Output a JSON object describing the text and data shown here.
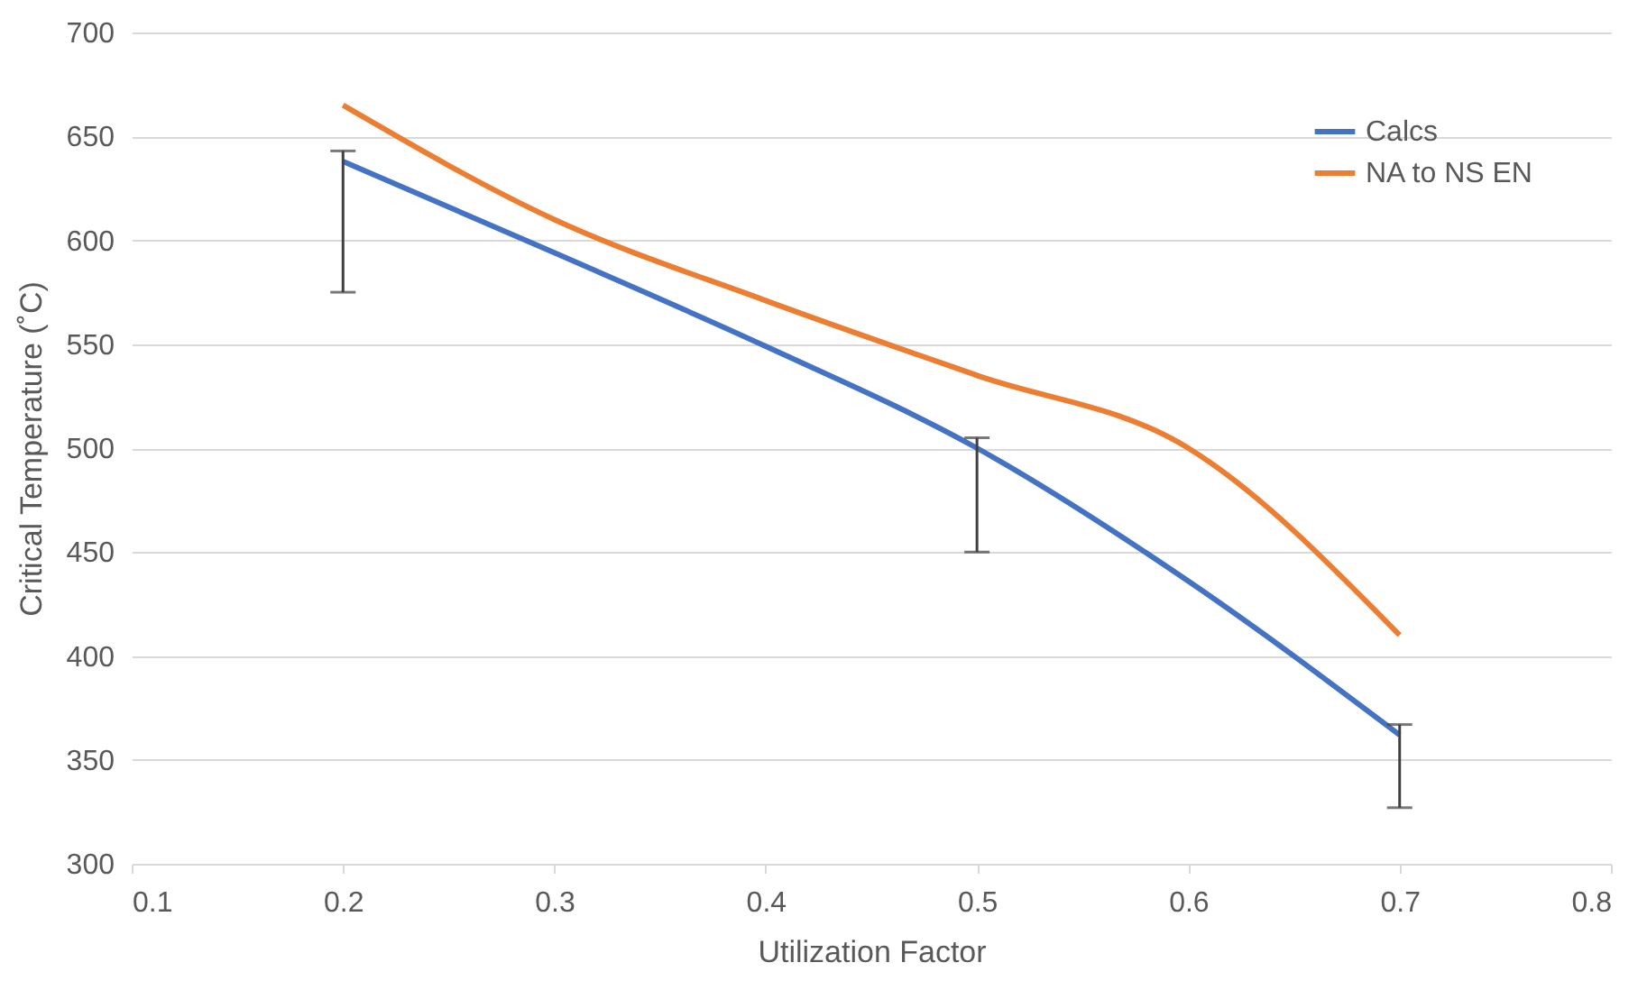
{
  "chart_data": {
    "type": "line",
    "xlabel": "Utilization Factor",
    "ylabel": "Critical Temperature (˚C)",
    "series": [
      {
        "name": "Calcs",
        "color": "#4472c4",
        "x": [
          0.2,
          0.3,
          0.4,
          0.5,
          0.6,
          0.7
        ],
        "values": [
          638,
          594,
          549,
          500,
          436,
          362
        ],
        "errors": [
          [
            575,
            643
          ],
          null,
          null,
          [
            450,
            505
          ],
          null,
          [
            327,
            367
          ]
        ]
      },
      {
        "name": "NA to NS EN",
        "color": "#ed7d31",
        "x": [
          0.2,
          0.3,
          0.4,
          0.5,
          0.6,
          0.7
        ],
        "values": [
          665,
          610,
          571,
          535,
          500,
          410
        ]
      }
    ],
    "xlim": [
      0.1,
      0.8
    ],
    "xticks": [
      0.1,
      0.2,
      0.3,
      0.4,
      0.5,
      0.6,
      0.7,
      0.8
    ],
    "ylim": [
      300,
      700
    ],
    "yticks": [
      300,
      350,
      400,
      450,
      500,
      550,
      600,
      650,
      700
    ],
    "grid": "y",
    "legend": "top right",
    "marker": "none",
    "line_style": "solid"
  }
}
